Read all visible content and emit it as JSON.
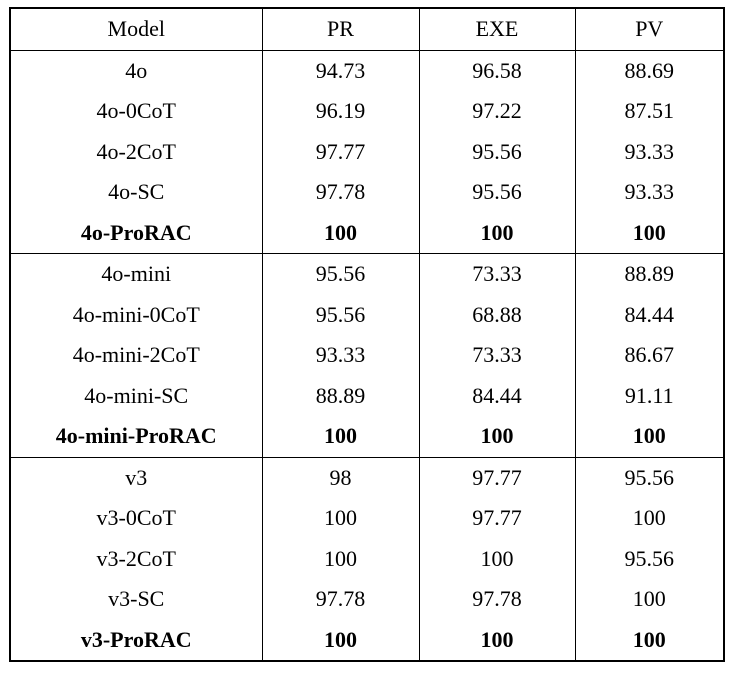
{
  "chart_data": {
    "type": "table",
    "title": "",
    "headers": [
      "Model",
      "PR",
      "EXE",
      "PV"
    ],
    "groups": [
      {
        "rows": [
          {
            "model": "4o",
            "values": [
              "94.73",
              "96.58",
              "88.69"
            ],
            "bold": false
          },
          {
            "model": "4o-0CoT",
            "values": [
              "96.19",
              "97.22",
              "87.51"
            ],
            "bold": false
          },
          {
            "model": "4o-2CoT",
            "values": [
              "97.77",
              "95.56",
              "93.33"
            ],
            "bold": false
          },
          {
            "model": "4o-SC",
            "values": [
              "97.78",
              "95.56",
              "93.33"
            ],
            "bold": false
          },
          {
            "model": "4o-ProRAC",
            "values": [
              "100",
              "100",
              "100"
            ],
            "bold": true
          }
        ]
      },
      {
        "rows": [
          {
            "model": "4o-mini",
            "values": [
              "95.56",
              "73.33",
              "88.89"
            ],
            "bold": false
          },
          {
            "model": "4o-mini-0CoT",
            "values": [
              "95.56",
              "68.88",
              "84.44"
            ],
            "bold": false
          },
          {
            "model": "4o-mini-2CoT",
            "values": [
              "93.33",
              "73.33",
              "86.67"
            ],
            "bold": false
          },
          {
            "model": "4o-mini-SC",
            "values": [
              "88.89",
              "84.44",
              "91.11"
            ],
            "bold": false
          },
          {
            "model": "4o-mini-ProRAC",
            "values": [
              "100",
              "100",
              "100"
            ],
            "bold": true
          }
        ]
      },
      {
        "rows": [
          {
            "model": "v3",
            "values": [
              "98",
              "97.77",
              "95.56"
            ],
            "bold": false
          },
          {
            "model": "v3-0CoT",
            "values": [
              "100",
              "97.77",
              "100"
            ],
            "bold": false
          },
          {
            "model": "v3-2CoT",
            "values": [
              "100",
              "100",
              "95.56"
            ],
            "bold": false
          },
          {
            "model": "v3-SC",
            "values": [
              "97.78",
              "97.78",
              "100"
            ],
            "bold": false
          },
          {
            "model": "v3-ProRAC",
            "values": [
              "100",
              "100",
              "100"
            ],
            "bold": true
          }
        ]
      }
    ]
  }
}
